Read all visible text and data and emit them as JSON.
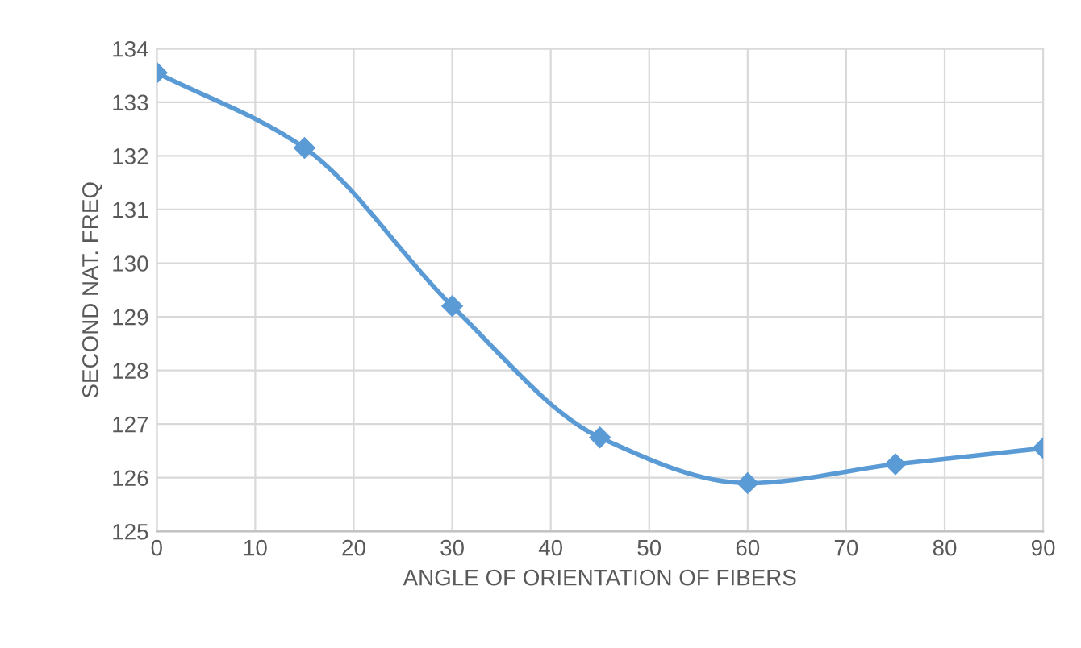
{
  "chart_data": {
    "type": "line",
    "xlabel": "ANGLE OF ORIENTATION OF FIBERS",
    "ylabel": "SECOND NAT. FREQ",
    "x": [
      0,
      15,
      30,
      45,
      60,
      75,
      90
    ],
    "series": [
      {
        "color": "#5b9bd5",
        "values": [
          133.55,
          132.15,
          129.2,
          126.75,
          125.9,
          126.25,
          126.55
        ]
      }
    ],
    "xlim": [
      0,
      90
    ],
    "xticks": [
      0,
      10,
      20,
      30,
      40,
      50,
      60,
      70,
      80,
      90
    ],
    "ylim": [
      125,
      134
    ],
    "yticks": [
      125,
      126,
      127,
      128,
      129,
      130,
      131,
      132,
      133,
      134
    ],
    "grid": true,
    "marker": "diamond",
    "line_style": "solid"
  }
}
